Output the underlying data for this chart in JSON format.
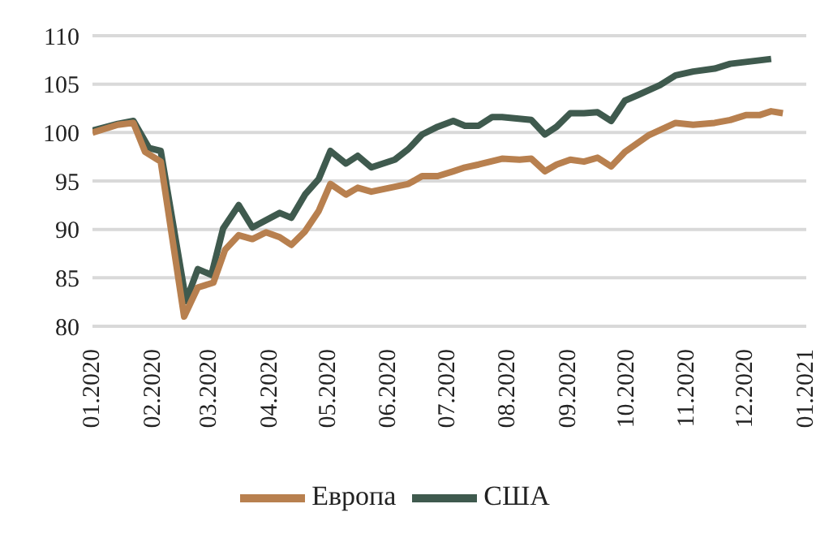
{
  "chart_data": {
    "type": "line",
    "xlim": [
      "2020-01-01",
      "2021-01-01"
    ],
    "xticks": [
      {
        "value": "2020-01-01",
        "label": "01.2020"
      },
      {
        "value": "2020-02-01",
        "label": "02.2020"
      },
      {
        "value": "2020-03-01",
        "label": "03.2020"
      },
      {
        "value": "2020-04-01",
        "label": "04.2020"
      },
      {
        "value": "2020-05-01",
        "label": "05.2020"
      },
      {
        "value": "2020-06-01",
        "label": "06.2020"
      },
      {
        "value": "2020-07-01",
        "label": "07.2020"
      },
      {
        "value": "2020-08-01",
        "label": "08.2020"
      },
      {
        "value": "2020-09-01",
        "label": "09.2020"
      },
      {
        "value": "2020-10-01",
        "label": "10.2020"
      },
      {
        "value": "2020-11-01",
        "label": "11.2020"
      },
      {
        "value": "2020-12-01",
        "label": "12.2020"
      },
      {
        "value": "2021-01-01",
        "label": "01.2021"
      }
    ],
    "ylim": [
      80,
      110
    ],
    "yticks": [
      80,
      85,
      90,
      95,
      100,
      105,
      110
    ],
    "grid": "y",
    "legend": "bottom",
    "marker": "none",
    "line_style": "solid",
    "series": [
      {
        "name": "США",
        "color": "#3f5a4e",
        "x": [
          "2020-01-01",
          "2020-01-14",
          "2020-01-22",
          "2020-01-30",
          "2020-02-05",
          "2020-02-18",
          "2020-02-24",
          "2020-03-02",
          "2020-03-08",
          "2020-03-16",
          "2020-03-23",
          "2020-04-06",
          "2020-04-12",
          "2020-04-19",
          "2020-04-26",
          "2020-05-02",
          "2020-05-10",
          "2020-05-16",
          "2020-05-23",
          "2020-06-04",
          "2020-06-11",
          "2020-06-18",
          "2020-06-26",
          "2020-07-04",
          "2020-07-10",
          "2020-07-17",
          "2020-07-24",
          "2020-07-29",
          "2020-08-13",
          "2020-08-20",
          "2020-08-26",
          "2020-09-02",
          "2020-09-09",
          "2020-09-16",
          "2020-09-23",
          "2020-09-30",
          "2020-10-07",
          "2020-10-18",
          "2020-10-26",
          "2020-11-04",
          "2020-11-15",
          "2020-11-23",
          "2020-12-14"
        ],
        "values": [
          100.2,
          100.9,
          101.2,
          98.4,
          98.1,
          82.6,
          85.9,
          85.3,
          90.1,
          92.5,
          90.2,
          91.7,
          91.2,
          93.6,
          95.2,
          98.1,
          96.8,
          97.6,
          96.4,
          97.2,
          98.3,
          99.8,
          100.6,
          101.2,
          100.7,
          100.7,
          101.6,
          101.6,
          101.3,
          99.8,
          100.6,
          102.0,
          102.0,
          102.1,
          101.2,
          103.3,
          103.9,
          104.9,
          105.9,
          106.3,
          106.6,
          107.1,
          107.6
        ]
      },
      {
        "name": "Европа",
        "color": "#b8804f",
        "x": [
          "2020-01-01",
          "2020-01-14",
          "2020-01-22",
          "2020-01-28",
          "2020-02-05",
          "2020-02-17",
          "2020-02-24",
          "2020-03-03",
          "2020-03-09",
          "2020-03-16",
          "2020-03-23",
          "2020-03-30",
          "2020-04-06",
          "2020-04-12",
          "2020-04-19",
          "2020-04-26",
          "2020-05-02",
          "2020-05-10",
          "2020-05-16",
          "2020-05-23",
          "2020-06-04",
          "2020-06-11",
          "2020-06-18",
          "2020-06-26",
          "2020-07-04",
          "2020-07-10",
          "2020-07-17",
          "2020-07-29",
          "2020-08-07",
          "2020-08-13",
          "2020-08-20",
          "2020-08-26",
          "2020-09-02",
          "2020-09-09",
          "2020-09-16",
          "2020-09-23",
          "2020-09-30",
          "2020-10-12",
          "2020-10-26",
          "2020-11-04",
          "2020-11-15",
          "2020-11-23",
          "2020-12-01",
          "2020-12-08",
          "2020-12-14",
          "2020-12-20"
        ],
        "values": [
          100.0,
          100.8,
          101.0,
          98.0,
          97.0,
          81.0,
          84.0,
          84.5,
          87.9,
          89.4,
          89.0,
          89.7,
          89.2,
          88.4,
          89.8,
          91.9,
          94.7,
          93.6,
          94.3,
          93.9,
          94.4,
          94.7,
          95.5,
          95.5,
          96.0,
          96.4,
          96.7,
          97.3,
          97.2,
          97.3,
          96.0,
          96.7,
          97.2,
          97.0,
          97.4,
          96.5,
          98.0,
          99.7,
          101.0,
          100.8,
          101.0,
          101.3,
          101.8,
          101.8,
          102.2,
          102.0
        ]
      }
    ]
  }
}
